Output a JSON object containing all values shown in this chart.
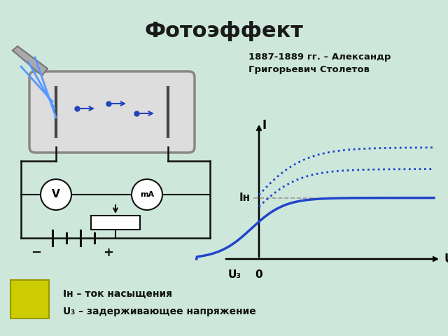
{
  "title": "Фотоэффект",
  "title_fontsize": 22,
  "title_fontweight": "bold",
  "title_color": "#1a1a1a",
  "bg_color": "#cde8db",
  "history_text": "1887-1889 гг. – Александр\nГригорьевич Столетов",
  "graph_xlabel": "U",
  "graph_ylabel": "I",
  "graph_x0_label": "0",
  "graph_uz_label": "U₃",
  "graph_ih_label": "Iн",
  "legend_line1": "Iн – ток насыщения",
  "legend_line2": "U₃ – задерживающее напряжение",
  "curve_color": "#2244cc",
  "dotted_color": "#2244cc",
  "yellow_rect_color": "#cccc00",
  "yellow_rect_border": "#999900",
  "tube_color": "#cccccc",
  "wire_color": "#111111"
}
